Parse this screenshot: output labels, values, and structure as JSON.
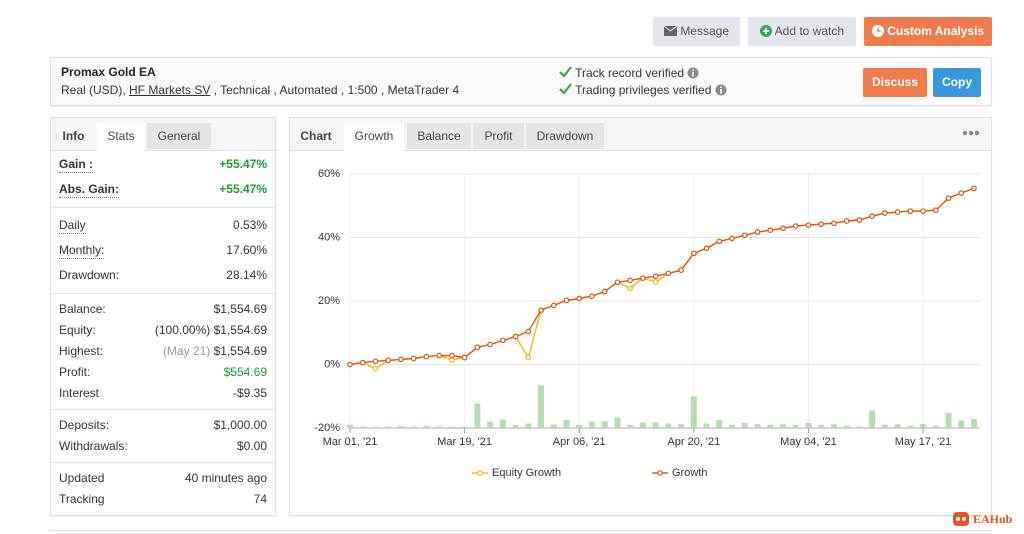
{
  "header": {
    "buttons": [
      "Message",
      "Add to watch",
      "Custom Analysis"
    ]
  },
  "account": {
    "name": "Promax Gold EA",
    "details": [
      "Real (USD), ",
      "HF Markets SV",
      " , Technical , Automated , 1:500 , MetaTrader 4"
    ],
    "verified": [
      "Track record verified",
      "Trading privileges verified"
    ],
    "buttons": [
      "Discuss",
      "Copy"
    ]
  },
  "stats": {
    "tabs": [
      "Info",
      "Stats",
      "General"
    ],
    "groups": [
      [
        {
          "label": "Gain :",
          "value": "+55.47%",
          "color": "#1e9b34"
        },
        {
          "label": "Abs. Gain:",
          "value": "+55.47%",
          "color": "#1e9b34"
        }
      ],
      [
        {
          "label": "Daily",
          "value": "0.53%"
        },
        {
          "label": "Monthly:",
          "value": "17.60%"
        },
        {
          "label": "Drawdown:",
          "value": "28.14%"
        }
      ],
      [
        {
          "label": "Balance:",
          "value": "$1,554.69"
        },
        {
          "label": "Equity:",
          "note": "(100.00%)",
          "value": "$1,554.69"
        },
        {
          "label": "Highest:",
          "note": "(May 21)",
          "note_color": "#999999",
          "value": "$1,554.69"
        },
        {
          "label": "Profit:",
          "value": "$554.69",
          "color": "#1e9b34"
        },
        {
          "label": "Interest",
          "value": "-$9.35"
        }
      ],
      [
        {
          "label": "Deposits:",
          "value": "$1,000.00"
        },
        {
          "label": "Withdrawals:",
          "value": "$0.00"
        }
      ],
      [
        {
          "label": "Updated",
          "value": "40 minutes ago"
        },
        {
          "label": "Tracking",
          "value": "74"
        }
      ]
    ]
  },
  "chart_panel": {
    "label": "Chart",
    "tabs": [
      "Growth",
      "Balance",
      "Profit",
      "Drawdown"
    ]
  },
  "chart_data": {
    "type": "line",
    "categories": [
      "Mar 01, '21",
      null,
      null,
      null,
      null,
      null,
      null,
      null,
      null,
      "Mar 19, '21",
      null,
      null,
      null,
      null,
      null,
      null,
      null,
      null,
      "Apr 06, '21",
      null,
      null,
      null,
      null,
      null,
      null,
      null,
      null,
      "Apr 20, '21",
      null,
      null,
      null,
      null,
      null,
      null,
      null,
      null,
      "May 04, '21",
      null,
      null,
      null,
      null,
      null,
      null,
      null,
      null,
      "May 17, '21",
      null,
      null,
      null,
      null
    ],
    "series": [
      {
        "name": "Equity Growth",
        "color": "#f2b70f",
        "values": [
          0,
          0.6,
          -1.3,
          1.3,
          1.6,
          1.9,
          2.5,
          2.8,
          1.5,
          2.2,
          5.4,
          6.3,
          7.6,
          8.8,
          2.2,
          17.1,
          18.6,
          20.2,
          20.8,
          21.5,
          23,
          25.9,
          24,
          27.2,
          26,
          28.7,
          29.7,
          35,
          36.6,
          38.8,
          39.7,
          40.7,
          41.7,
          42.3,
          42.9,
          43.6,
          43.9,
          44.2,
          44.5,
          45.2,
          45.5,
          46.7,
          47.7,
          48,
          48.3,
          48.3,
          48.6,
          52.4,
          54,
          55.47
        ]
      },
      {
        "name": "Growth",
        "color": "#e2531d",
        "values": [
          0,
          0.6,
          1,
          1.3,
          1.6,
          1.9,
          2.5,
          2.8,
          2.8,
          2.2,
          5.4,
          6.3,
          7.6,
          8.8,
          10.4,
          17.1,
          18.6,
          20.2,
          20.8,
          21.5,
          23,
          25.9,
          26.5,
          27.2,
          27.8,
          28.7,
          29.7,
          35,
          36.6,
          38.8,
          39.7,
          40.7,
          41.7,
          42.3,
          42.9,
          43.6,
          43.9,
          44.2,
          44.5,
          45.2,
          45.5,
          46.7,
          47.7,
          48,
          48.3,
          48.3,
          48.6,
          52.4,
          54,
          55.47
        ]
      },
      {
        "type": "bar",
        "color": "#b5deb0",
        "values": [
          -19,
          -19.5,
          -19.6,
          -19.5,
          -19.4,
          -19.5,
          -19.3,
          -19.5,
          -19.6,
          -19.6,
          -12.3,
          -18,
          -17.3,
          -19,
          -18.6,
          -6.6,
          -18.9,
          -17.4,
          -19,
          -18,
          -17.9,
          -16.7,
          -19,
          -18.3,
          -18.2,
          -18.6,
          -18.8,
          -10,
          -18.6,
          -17.5,
          -19,
          -18.4,
          -18.8,
          -19,
          -18.8,
          -19,
          -18.4,
          -19,
          -18.8,
          -19.3,
          -19.5,
          -14.5,
          -19,
          -18.8,
          -19.3,
          -18.8,
          -19.3,
          -15.3,
          -17.6,
          -17.2
        ]
      }
    ],
    "ylim": [
      -20,
      60
    ],
    "yticks": [
      {
        "value": -20,
        "label": "-20%"
      },
      {
        "value": 0,
        "label": "0%"
      },
      {
        "value": 20,
        "label": "20%"
      },
      {
        "value": 40,
        "label": "40%"
      },
      {
        "value": 60,
        "label": "60%"
      }
    ],
    "grid": true
  },
  "watermark": "EAHub"
}
